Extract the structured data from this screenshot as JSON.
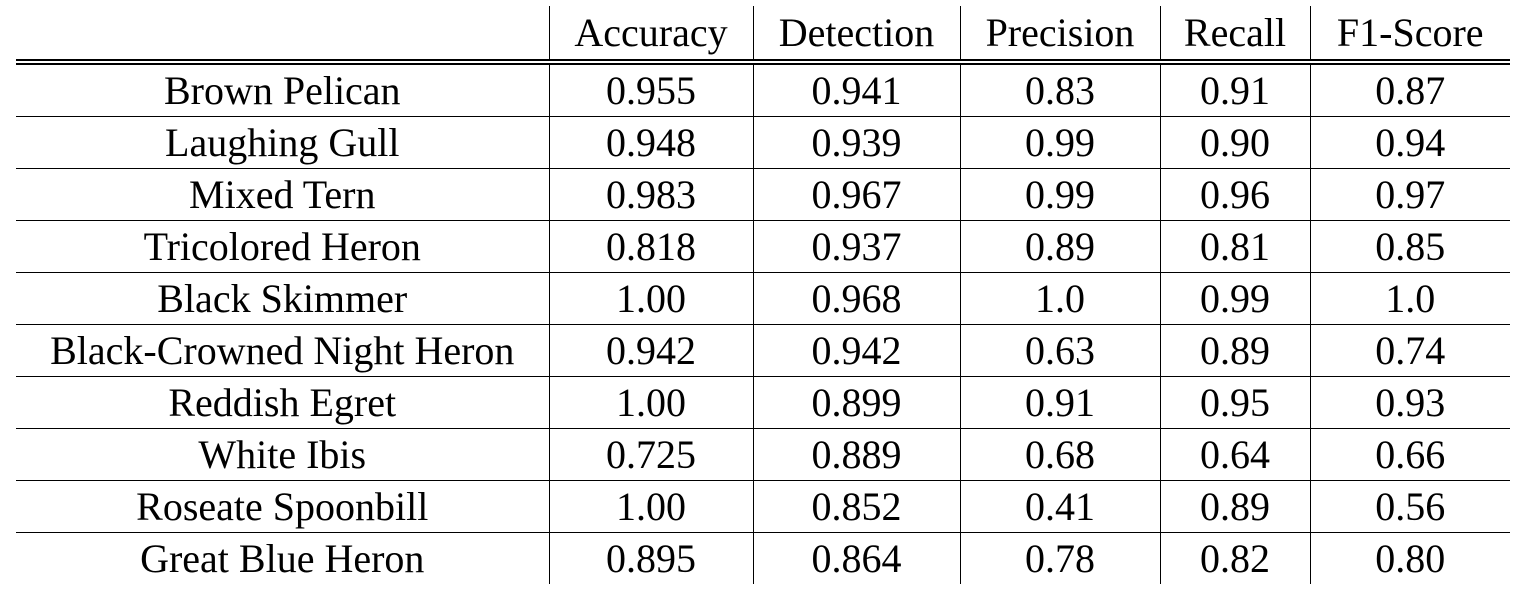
{
  "table": {
    "columns": [
      "",
      "Accuracy",
      "Detection",
      "Precision",
      "Recall",
      "F1-Score"
    ],
    "rows": [
      {
        "name": "Brown Pelican",
        "accuracy": "0.955",
        "detection": "0.941",
        "precision": "0.83",
        "recall": "0.91",
        "f1": "0.87"
      },
      {
        "name": "Laughing Gull",
        "accuracy": "0.948",
        "detection": "0.939",
        "precision": "0.99",
        "recall": "0.90",
        "f1": "0.94"
      },
      {
        "name": "Mixed Tern",
        "accuracy": "0.983",
        "detection": "0.967",
        "precision": "0.99",
        "recall": "0.96",
        "f1": "0.97"
      },
      {
        "name": "Tricolored Heron",
        "accuracy": "0.818",
        "detection": "0.937",
        "precision": "0.89",
        "recall": "0.81",
        "f1": "0.85"
      },
      {
        "name": "Black Skimmer",
        "accuracy": "1.00",
        "detection": "0.968",
        "precision": "1.0",
        "recall": "0.99",
        "f1": "1.0"
      },
      {
        "name": "Black-Crowned Night Heron",
        "accuracy": "0.942",
        "detection": "0.942",
        "precision": "0.63",
        "recall": "0.89",
        "f1": "0.74"
      },
      {
        "name": "Reddish Egret",
        "accuracy": "1.00",
        "detection": "0.899",
        "precision": "0.91",
        "recall": "0.95",
        "f1": "0.93"
      },
      {
        "name": "White Ibis",
        "accuracy": "0.725",
        "detection": "0.889",
        "precision": "0.68",
        "recall": "0.64",
        "f1": "0.66"
      },
      {
        "name": "Roseate Spoonbill",
        "accuracy": "1.00",
        "detection": "0.852",
        "precision": "0.41",
        "recall": "0.89",
        "f1": "0.56"
      },
      {
        "name": "Great Blue Heron",
        "accuracy": "0.895",
        "detection": "0.864",
        "precision": "0.78",
        "recall": "0.82",
        "f1": "0.80"
      }
    ]
  }
}
